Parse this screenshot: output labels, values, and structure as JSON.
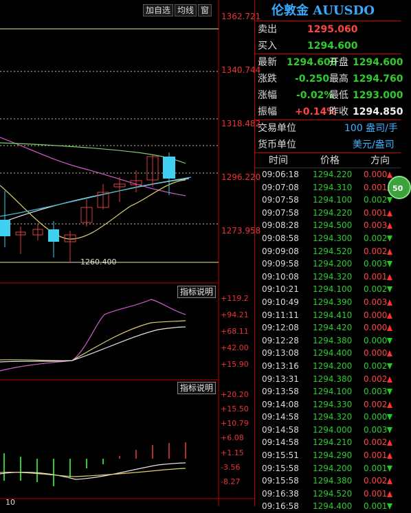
{
  "toolbar": {
    "add_watch": "加自选",
    "ma_line": "均线",
    "window": "窗"
  },
  "main_chart": {
    "y_labels": [
      "1362.721",
      "1340.744",
      "1318.482",
      "1296.220",
      "1273.958"
    ],
    "low_note": "1260.400"
  },
  "indicator1": {
    "explain_btn": "指标说明",
    "y_labels": [
      "+119.2",
      "+94.21",
      "+68.11",
      "+42.00",
      "+15.90"
    ]
  },
  "indicator2": {
    "explain_btn": "指标说明",
    "y_labels": [
      "+20.20",
      "+15.50",
      "+10.79",
      "+6.08",
      "+1.15",
      "-3.56",
      "-8.27"
    ]
  },
  "x_axis": {
    "label": "10"
  },
  "quote": {
    "title": "伦敦金 AUUSDO",
    "sell_label": "卖出",
    "sell": "1295.060",
    "buy_label": "买入",
    "buy": "1294.600",
    "latest_label": "最新",
    "latest": "1294.600",
    "open_label": "开盘",
    "open": "1294.600",
    "change_label": "涨跌",
    "change": "-0.250",
    "high_label": "最高",
    "high": "1294.760",
    "pct_label": "涨幅",
    "pct": "-0.02%",
    "low_label": "最低",
    "low": "1293.000",
    "amp_label": "振幅",
    "amp": "+0.14%",
    "prev_label": "昨收",
    "prev": "1294.850",
    "unit_label": "交易单位",
    "unit": "100 盎司/手",
    "currency_label": "货币单位",
    "currency": "美元/盎司",
    "badge": "50"
  },
  "ticks_header": {
    "time": "时间",
    "price": "价格",
    "direction": "方向"
  },
  "ticks": [
    {
      "time": "09:06:18",
      "price": "1294.220",
      "chg": "0.000",
      "dir": "up"
    },
    {
      "time": "09:07:08",
      "price": "1294.310",
      "chg": "0.001",
      "dir": "up"
    },
    {
      "time": "09:07:58",
      "price": "1294.100",
      "chg": "0.002",
      "dir": "down"
    },
    {
      "time": "09:07:58",
      "price": "1294.220",
      "chg": "0.001",
      "dir": "up"
    },
    {
      "time": "09:08:28",
      "price": "1294.500",
      "chg": "0.003",
      "dir": "up"
    },
    {
      "time": "09:08:58",
      "price": "1294.300",
      "chg": "0.002",
      "dir": "down"
    },
    {
      "time": "09:09:08",
      "price": "1294.520",
      "chg": "0.002",
      "dir": "up"
    },
    {
      "time": "09:09:58",
      "price": "1294.200",
      "chg": "0.003",
      "dir": "down"
    },
    {
      "time": "09:10:08",
      "price": "1294.320",
      "chg": "0.001",
      "dir": "up"
    },
    {
      "time": "09:10:21",
      "price": "1294.100",
      "chg": "0.002",
      "dir": "down"
    },
    {
      "time": "09:10:49",
      "price": "1294.390",
      "chg": "0.003",
      "dir": "up"
    },
    {
      "time": "09:11:11",
      "price": "1294.410",
      "chg": "0.000",
      "dir": "up"
    },
    {
      "time": "09:12:08",
      "price": "1294.420",
      "chg": "0.000",
      "dir": "up"
    },
    {
      "time": "09:12:28",
      "price": "1294.380",
      "chg": "0.000",
      "dir": "down"
    },
    {
      "time": "09:13:08",
      "price": "1294.400",
      "chg": "0.000",
      "dir": "up"
    },
    {
      "time": "09:13:16",
      "price": "1294.200",
      "chg": "0.002",
      "dir": "down"
    },
    {
      "time": "09:13:31",
      "price": "1294.380",
      "chg": "0.002",
      "dir": "up"
    },
    {
      "time": "09:13:58",
      "price": "1294.100",
      "chg": "0.003",
      "dir": "down"
    },
    {
      "time": "09:14:08",
      "price": "1294.330",
      "chg": "0.002",
      "dir": "up"
    },
    {
      "time": "09:14:58",
      "price": "1294.320",
      "chg": "0.000",
      "dir": "down"
    },
    {
      "time": "09:14:58",
      "price": "1294.000",
      "chg": "0.003",
      "dir": "down"
    },
    {
      "time": "09:14:58",
      "price": "1294.210",
      "chg": "0.002",
      "dir": "up"
    },
    {
      "time": "09:15:51",
      "price": "1294.290",
      "chg": "0.001",
      "dir": "up"
    },
    {
      "time": "09:15:58",
      "price": "1294.200",
      "chg": "0.001",
      "dir": "down"
    },
    {
      "time": "09:15:58",
      "price": "1294.380",
      "chg": "0.002",
      "dir": "up"
    },
    {
      "time": "09:16:38",
      "price": "1294.520",
      "chg": "0.001",
      "dir": "up"
    },
    {
      "time": "09:16:58",
      "price": "1294.400",
      "chg": "0.001",
      "dir": "down"
    }
  ]
}
